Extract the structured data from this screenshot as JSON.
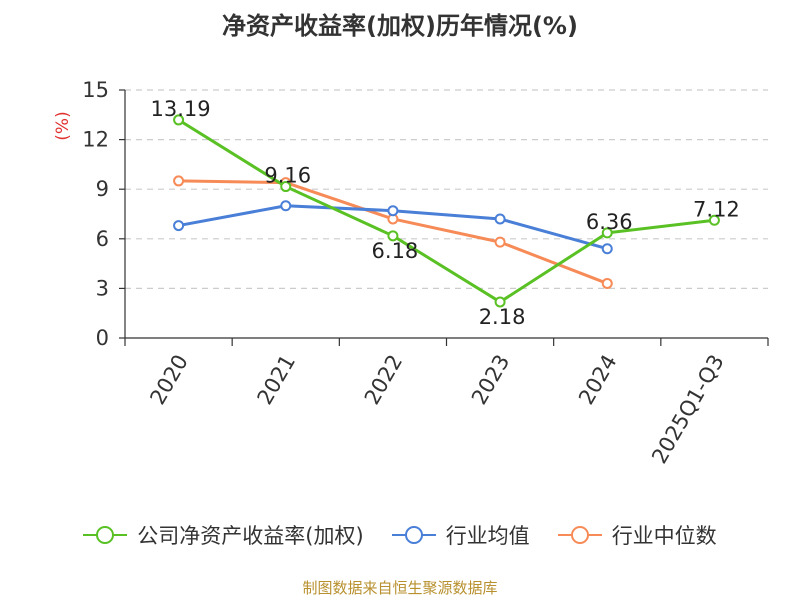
{
  "chart_data": {
    "type": "line",
    "title": "净资产收益率(加权)历年情况(%)",
    "ylabel": "(%)",
    "categories": [
      "2020",
      "2021",
      "2022",
      "2023",
      "2024",
      "2025Q1-Q3"
    ],
    "ylim": [
      0,
      15
    ],
    "yticks": [
      0,
      3,
      6,
      9,
      12,
      15
    ],
    "grid": true,
    "legend_position": "bottom",
    "series": [
      {
        "name": "公司净资产收益率(加权)",
        "color": "#5ac125",
        "values": [
          13.19,
          9.16,
          6.18,
          2.18,
          6.36,
          7.12
        ],
        "labels": [
          "13.19",
          "9.16",
          "6.18",
          "2.18",
          "6.36",
          "7.12"
        ]
      },
      {
        "name": "行业均值",
        "color": "#4a7fd8",
        "values": [
          6.8,
          8.0,
          7.7,
          7.2,
          5.4,
          null
        ]
      },
      {
        "name": "行业中位数",
        "color": "#f78b57",
        "values": [
          9.5,
          9.4,
          7.2,
          5.8,
          3.3,
          null
        ]
      }
    ]
  },
  "source": "制图数据来自恒生聚源数据库"
}
